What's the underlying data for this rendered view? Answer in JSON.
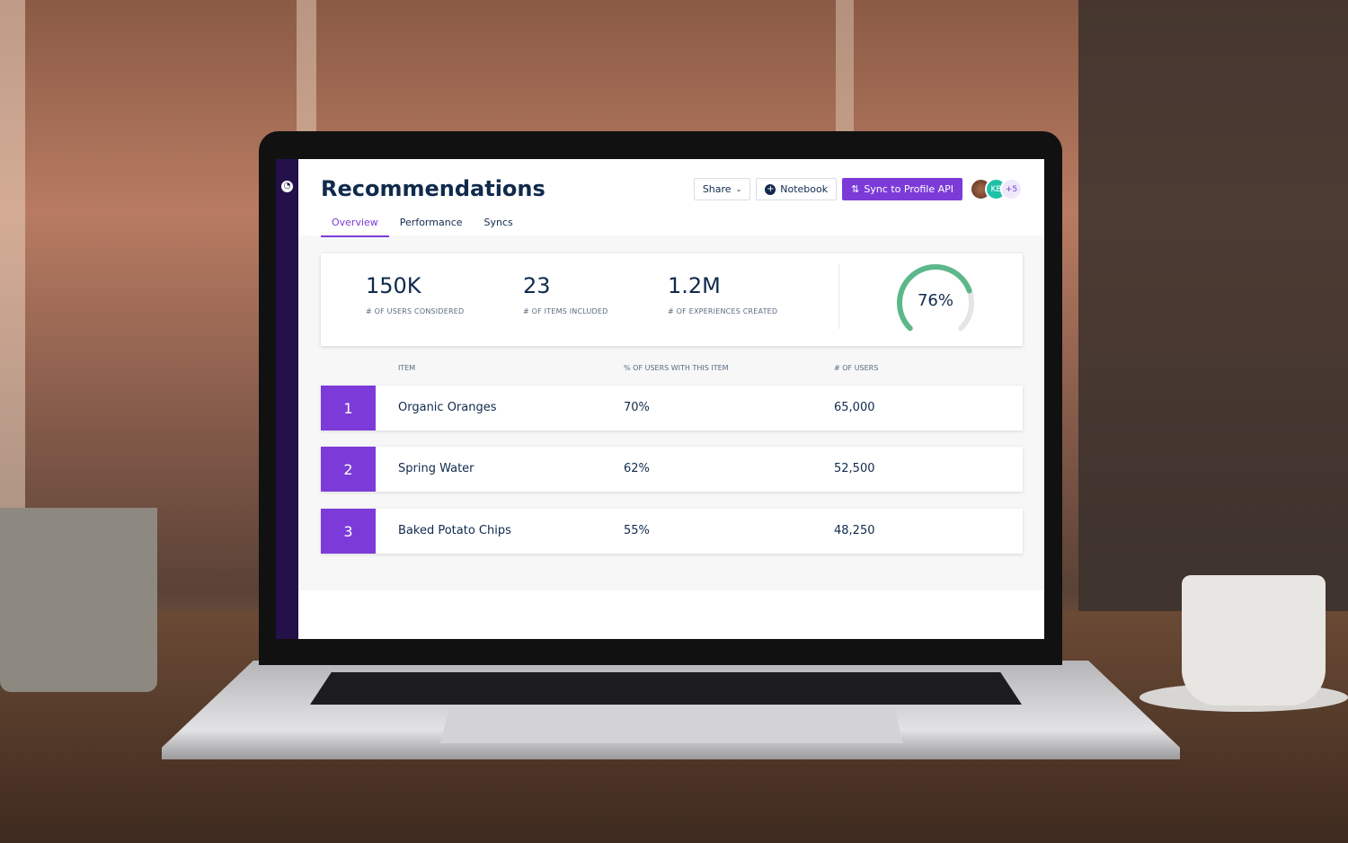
{
  "app": {
    "title": "Recommendations",
    "logo_icon": "app-logo-icon"
  },
  "tabs": [
    {
      "label": "Overview",
      "active": true
    },
    {
      "label": "Performance"
    },
    {
      "label": "Syncs"
    }
  ],
  "toolbar": {
    "share_label": "Share",
    "notebook_label": "Notebook",
    "sync_label": "Sync to Profile API"
  },
  "avatars": [
    {
      "initials": ""
    },
    {
      "initials": "KB"
    },
    {
      "initials": "+5"
    }
  ],
  "stats": [
    {
      "value": "150K",
      "label": "# OF USERS CONSIDERED"
    },
    {
      "value": "23",
      "label": "# OF ITEMS INCLUDED"
    },
    {
      "value": "1.2M",
      "label": "# OF EXPERIENCES CREATED"
    }
  ],
  "gauge": {
    "value": 76,
    "label": "76%",
    "color": "#5cb88a",
    "track": "#e5e5e5"
  },
  "table": {
    "headers": [
      "ITEM",
      "% OF USERS WITH THIS ITEM",
      "# OF USERS"
    ],
    "rows": [
      {
        "rank": "1",
        "item": "Organic Oranges",
        "pct": "70%",
        "users": "65,000"
      },
      {
        "rank": "2",
        "item": "Spring Water",
        "pct": "62%",
        "users": "52,500"
      },
      {
        "rank": "3",
        "item": "Baked Potato Chips",
        "pct": "55%",
        "users": "48,250"
      }
    ]
  },
  "colors": {
    "accent": "#7c3bd8",
    "sidebar": "#24114a",
    "text": "#102a4c"
  }
}
